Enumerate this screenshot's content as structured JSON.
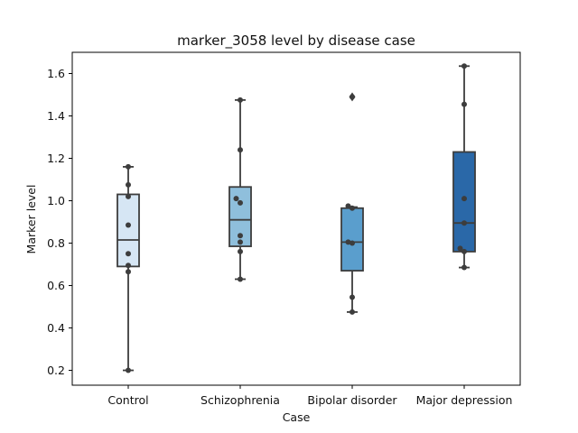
{
  "chart_data": {
    "type": "box",
    "title": "marker_3058 level by disease case",
    "xlabel": "Case",
    "ylabel": "Marker level",
    "ylim": [
      0.13,
      1.7
    ],
    "yticks": [
      0.2,
      0.4,
      0.6,
      0.8,
      1.0,
      1.2,
      1.4,
      1.6
    ],
    "ytick_labels": [
      "0.2",
      "0.4",
      "0.6",
      "0.8",
      "1.0",
      "1.2",
      "1.4",
      "1.6"
    ],
    "categories": [
      "Control",
      "Schizophrenia",
      "Bipolar disorder",
      "Major depression"
    ],
    "colors": [
      "#d6e6f4",
      "#8fbfdc",
      "#5a9ecd",
      "#2a68a8"
    ],
    "grid": false,
    "boxes": [
      {
        "q1": 0.69,
        "median": 0.815,
        "q3": 1.03,
        "whisker_low": 0.2,
        "whisker_high": 1.16,
        "outliers": [],
        "points": [
          1.16,
          1.075,
          1.02,
          0.885,
          0.75,
          0.695,
          0.665,
          0.2
        ]
      },
      {
        "q1": 0.785,
        "median": 0.91,
        "q3": 1.065,
        "whisker_low": 0.63,
        "whisker_high": 1.475,
        "outliers": [],
        "points": [
          1.475,
          1.24,
          1.01,
          0.99,
          0.835,
          0.805,
          0.76,
          0.63
        ]
      },
      {
        "q1": 0.67,
        "median": 0.805,
        "q3": 0.965,
        "whisker_low": 0.475,
        "whisker_high": 0.97,
        "outliers": [
          1.49
        ],
        "points": [
          1.49,
          0.975,
          0.965,
          0.805,
          0.8,
          0.545,
          0.475
        ]
      },
      {
        "q1": 0.76,
        "median": 0.895,
        "q3": 1.23,
        "whisker_low": 0.685,
        "whisker_high": 1.635,
        "outliers": [],
        "points": [
          1.635,
          1.455,
          1.01,
          0.895,
          0.775,
          0.76,
          0.685
        ]
      }
    ]
  }
}
